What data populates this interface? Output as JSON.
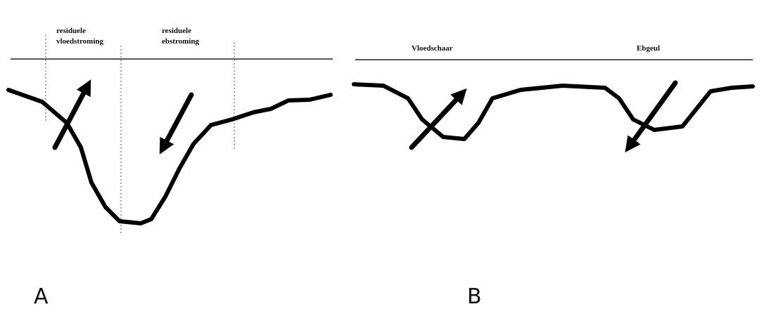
{
  "panels": [
    {
      "label": "A",
      "annotations": [
        [
          "residuele",
          "vloedstroming"
        ],
        [
          "residuele",
          "ebstroming"
        ]
      ]
    },
    {
      "label": "B",
      "annotations": [
        [
          "Vloedschaar"
        ],
        [
          "Ebgeul"
        ]
      ]
    }
  ]
}
